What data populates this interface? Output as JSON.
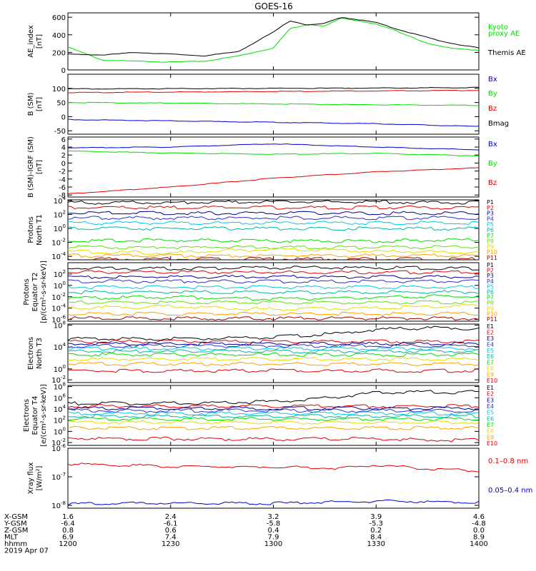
{
  "title": "GOES-16",
  "colors": {
    "black": "#000000",
    "red": "#e00000",
    "green": "#00e000",
    "blue": "#0000cc",
    "navy": "#000090",
    "purple": "#3030c8",
    "cyan": "#00c8e6",
    "teal": "#00b8a0",
    "lime": "#60e010",
    "yellow": "#e0e000",
    "orange": "#ffa000",
    "darkred": "#a00000"
  },
  "chart_data": [
    {
      "type": "line",
      "id": "ae",
      "ylabel": "AE_index\n[nT]",
      "yscale": "linear",
      "ylim": [
        0,
        650
      ],
      "yticks": [
        0,
        200,
        400,
        600
      ],
      "yticklabels": [
        "0",
        "200",
        "400",
        "600"
      ],
      "x_hours": [
        12.0,
        12.17,
        12.33,
        12.5,
        12.67,
        12.83,
        13.0,
        13.08,
        13.17,
        13.25,
        13.33,
        13.42,
        13.5,
        13.58,
        13.67,
        13.75,
        13.83,
        13.92,
        14.0
      ],
      "series": [
        {
          "name": "Kyoto\nproxy AE",
          "color": "green",
          "values": [
            260,
            110,
            100,
            90,
            100,
            160,
            250,
            470,
            520,
            500,
            590,
            560,
            520,
            460,
            380,
            300,
            260,
            240,
            220
          ]
        },
        {
          "name": "Themis AE",
          "color": "black",
          "values": [
            180,
            170,
            200,
            180,
            160,
            210,
            430,
            560,
            510,
            530,
            600,
            570,
            540,
            480,
            420,
            370,
            320,
            280,
            250
          ]
        }
      ]
    },
    {
      "type": "line",
      "id": "b_sm",
      "ylabel": "B (SM)\n[nT]",
      "yscale": "linear",
      "ylim": [
        -62,
        150
      ],
      "yticks": [
        -50,
        0,
        50,
        100
      ],
      "yticklabels": [
        "-50",
        "0",
        "50",
        "100"
      ],
      "x_hours": [
        12.0,
        12.5,
        13.0,
        13.5,
        14.0
      ],
      "series": [
        {
          "name": "Bx",
          "color": "blue",
          "values": [
            -10,
            -15,
            -20,
            -25,
            -35
          ]
        },
        {
          "name": "By",
          "color": "green",
          "values": [
            50,
            48,
            45,
            42,
            40
          ]
        },
        {
          "name": "Bz",
          "color": "red",
          "values": [
            85,
            87,
            89,
            91,
            93
          ]
        },
        {
          "name": "Bmag",
          "color": "black",
          "values": [
            98,
            99,
            100,
            101,
            103
          ]
        }
      ]
    },
    {
      "type": "line",
      "id": "b_dev",
      "ylabel": "B (SM)-IGRF (SM)\n[nT]",
      "yscale": "linear",
      "ylim": [
        -8.5,
        6.5
      ],
      "yticks": [
        -8,
        -6,
        -4,
        -2,
        0,
        2,
        4,
        6
      ],
      "yticklabels": [
        "-8",
        "-6",
        "-4",
        "-2",
        "0",
        "2",
        "4",
        "6"
      ],
      "x_hours": [
        12.0,
        12.5,
        13.0,
        13.5,
        14.0
      ],
      "series": [
        {
          "name": "Bx",
          "color": "blue",
          "values": [
            3.8,
            4.0,
            4.8,
            4.0,
            3.3
          ]
        },
        {
          "name": "By",
          "color": "green",
          "values": [
            3.0,
            2.5,
            2.2,
            2.4,
            1.8
          ]
        },
        {
          "name": "Bz",
          "color": "red",
          "values": [
            -7.7,
            -6.0,
            -3.8,
            -2.2,
            -1.2
          ]
        }
      ]
    },
    {
      "type": "line",
      "id": "protons_t1",
      "ylabel": "Protons\nNorth T1",
      "yscale": "log",
      "ylim_exp": [
        -4.5,
        4.1
      ],
      "yticks": [
        -4,
        -2,
        0,
        2,
        4
      ],
      "yticklabels": [
        "10^-4",
        "10^-2",
        "10^0",
        "10^2",
        "10^4"
      ],
      "x_hours": [
        12.0,
        12.5,
        13.0,
        13.5,
        14.0
      ],
      "series": [
        {
          "name": "P1",
          "color": "black",
          "values": [
            3.7,
            3.7,
            3.8,
            3.8,
            3.7
          ]
        },
        {
          "name": "P2",
          "color": "red",
          "values": [
            3.0,
            3.0,
            3.0,
            3.0,
            3.0
          ]
        },
        {
          "name": "P3",
          "color": "navy",
          "values": [
            2.2,
            2.2,
            2.2,
            2.2,
            2.2
          ]
        },
        {
          "name": "P4",
          "color": "purple",
          "values": [
            1.5,
            1.5,
            1.5,
            1.5,
            1.5
          ]
        },
        {
          "name": "P5",
          "color": "cyan",
          "values": [
            0.8,
            0.8,
            0.8,
            0.8,
            0.8
          ]
        },
        {
          "name": "P6",
          "color": "teal",
          "values": [
            0.0,
            0.0,
            0.0,
            0.0,
            0.0
          ]
        },
        {
          "name": "P7",
          "color": "green",
          "values": [
            -1.8,
            -1.7,
            -1.8,
            -1.8,
            -1.6
          ]
        },
        {
          "name": "P8",
          "color": "lime",
          "values": [
            -2.7,
            -2.7,
            -2.7,
            -2.7,
            -2.7
          ]
        },
        {
          "name": "P9",
          "color": "yellow",
          "values": [
            -3.3,
            -3.5,
            -3.0,
            -3.3,
            -3.4
          ]
        },
        {
          "name": "P10",
          "color": "orange",
          "values": [
            -3.9,
            -3.9,
            -3.9,
            -3.9,
            -3.9
          ]
        },
        {
          "name": "P11",
          "color": "darkred",
          "values": [
            -4.4,
            -4.4,
            -4.4,
            -4.4,
            -4.4
          ]
        }
      ]
    },
    {
      "type": "line",
      "id": "protons_t2",
      "ylabel": "Protons\nEquator T2\n[p/(cm²-s-sr-keV)]",
      "yscale": "log",
      "ylim_exp": [
        -6.3,
        4.0
      ],
      "yticks": [
        -6,
        -4,
        -2,
        0,
        2
      ],
      "yticklabels": [
        "10^-6",
        "10^-4",
        "10^-2",
        "10^0",
        "10^2"
      ],
      "x_hours": [
        12.0,
        12.5,
        13.0,
        13.5,
        14.0
      ],
      "series": [
        {
          "name": "P1",
          "color": "black",
          "values": [
            3.0,
            3.0,
            3.1,
            3.1,
            3.0
          ]
        },
        {
          "name": "P2",
          "color": "red",
          "values": [
            2.3,
            2.3,
            2.3,
            2.3,
            2.3
          ]
        },
        {
          "name": "P3",
          "color": "navy",
          "values": [
            1.5,
            1.5,
            1.5,
            1.5,
            1.5
          ]
        },
        {
          "name": "P4",
          "color": "purple",
          "values": [
            0.7,
            0.7,
            0.7,
            0.7,
            0.7
          ]
        },
        {
          "name": "P5",
          "color": "cyan",
          "values": [
            -0.3,
            -0.3,
            -0.3,
            -0.3,
            -0.3
          ]
        },
        {
          "name": "P6",
          "color": "teal",
          "values": [
            -1.2,
            -1.2,
            -1.2,
            -1.2,
            -1.2
          ]
        },
        {
          "name": "P7",
          "color": "green",
          "values": [
            -2.3,
            -2.0,
            -2.4,
            -2.1,
            -1.8
          ]
        },
        {
          "name": "P8",
          "color": "lime",
          "values": [
            -3.0,
            -3.0,
            -3.0,
            -3.0,
            -3.0
          ]
        },
        {
          "name": "P9",
          "color": "yellow",
          "values": [
            -4.0,
            -3.7,
            -4.2,
            -4.0,
            -3.5
          ]
        },
        {
          "name": "P10",
          "color": "orange",
          "values": [
            -5.0,
            -5.0,
            -5.0,
            -5.0,
            -5.0
          ]
        },
        {
          "name": "P11",
          "color": "darkred",
          "values": [
            -5.8,
            -5.8,
            -5.8,
            -5.8,
            -5.8
          ]
        }
      ]
    },
    {
      "type": "line",
      "id": "electrons_t3",
      "ylabel": "Electrons\nNorth T3",
      "yscale": "log",
      "ylim_exp": [
        -2.5,
        8.2
      ],
      "yticks": [
        -2,
        0,
        4,
        8
      ],
      "yticklabels": [
        "10^-2",
        "10^0",
        "10^4",
        "10^8"
      ],
      "x_hours": [
        12.0,
        12.5,
        13.0,
        13.33,
        13.5,
        13.75,
        14.0
      ],
      "series": [
        {
          "name": "E1",
          "color": "black",
          "values": [
            5.5,
            5.5,
            5.8,
            6.5,
            7.2,
            7.5,
            7.4
          ]
        },
        {
          "name": "E2",
          "color": "red",
          "values": [
            5.0,
            5.0,
            5.0,
            5.0,
            5.0,
            5.0,
            5.0
          ]
        },
        {
          "name": "E3",
          "color": "navy",
          "values": [
            4.6,
            4.6,
            4.6,
            4.6,
            4.6,
            4.6,
            4.6
          ]
        },
        {
          "name": "E4",
          "color": "purple",
          "values": [
            4.2,
            4.2,
            4.2,
            4.2,
            4.2,
            4.2,
            4.2
          ]
        },
        {
          "name": "E5",
          "color": "cyan",
          "values": [
            3.7,
            3.7,
            3.7,
            3.7,
            3.7,
            3.7,
            3.7
          ]
        },
        {
          "name": "E6",
          "color": "teal",
          "values": [
            3.2,
            3.2,
            3.2,
            3.2,
            3.2,
            3.2,
            3.2
          ]
        },
        {
          "name": "E7",
          "color": "green",
          "values": [
            2.6,
            2.6,
            2.6,
            2.6,
            2.6,
            2.6,
            2.6
          ]
        },
        {
          "name": "E8",
          "color": "yellow",
          "values": [
            1.8,
            1.8,
            1.8,
            1.8,
            1.8,
            1.8,
            1.8
          ]
        },
        {
          "name": "E9",
          "color": "orange",
          "values": [
            0.9,
            0.9,
            0.9,
            0.9,
            0.9,
            0.9,
            0.9
          ]
        },
        {
          "name": "E10",
          "color": "red",
          "values": [
            -0.3,
            -0.4,
            -0.3,
            -0.4,
            -0.3,
            -0.4,
            -0.3
          ]
        }
      ]
    },
    {
      "type": "line",
      "id": "electrons_t4",
      "ylabel": "Electrons\nEquator T4\n[e/(cm²-s-sr-keV)]",
      "yscale": "log",
      "ylim_exp": [
        -2.5,
        8.2
      ],
      "yticks": [
        -2,
        0,
        2,
        4,
        6,
        8
      ],
      "yticklabels": [
        "10^-2",
        "10^0",
        "10^2",
        "10^4",
        "10^6",
        "10^8"
      ],
      "x_hours": [
        12.0,
        12.5,
        13.0,
        13.33,
        13.5,
        13.75,
        14.0
      ],
      "series": [
        {
          "name": "E1",
          "color": "black",
          "values": [
            5.0,
            5.0,
            5.3,
            6.2,
            6.9,
            7.0,
            7.0
          ]
        },
        {
          "name": "E2",
          "color": "red",
          "values": [
            4.5,
            4.5,
            4.5,
            4.5,
            4.5,
            4.5,
            4.5
          ]
        },
        {
          "name": "E3",
          "color": "navy",
          "values": [
            4.1,
            4.1,
            4.1,
            4.1,
            4.1,
            4.1,
            4.1
          ]
        },
        {
          "name": "E4",
          "color": "purple",
          "values": [
            3.7,
            3.7,
            3.7,
            3.7,
            3.7,
            3.7,
            3.7
          ]
        },
        {
          "name": "E5",
          "color": "cyan",
          "values": [
            3.2,
            3.2,
            3.2,
            3.2,
            3.2,
            3.2,
            3.2
          ]
        },
        {
          "name": "E6",
          "color": "teal",
          "values": [
            2.7,
            2.7,
            2.7,
            2.7,
            2.7,
            2.7,
            2.7
          ]
        },
        {
          "name": "E7",
          "color": "green",
          "values": [
            2.2,
            2.2,
            2.2,
            2.2,
            2.2,
            2.2,
            2.2
          ]
        },
        {
          "name": "E8",
          "color": "yellow",
          "values": [
            1.6,
            1.6,
            1.6,
            1.6,
            1.6,
            1.6,
            1.6
          ]
        },
        {
          "name": "E9",
          "color": "orange",
          "values": [
            0.6,
            0.6,
            0.6,
            0.6,
            0.6,
            0.6,
            0.6
          ]
        },
        {
          "name": "E10",
          "color": "red",
          "values": [
            -1.2,
            -1.3,
            -1.4,
            -1.3,
            -1.3,
            -1.5,
            -1.6
          ]
        }
      ]
    },
    {
      "type": "line",
      "id": "xray",
      "ylabel": "Xray flux\n[W/m²]",
      "yscale": "log",
      "ylim_exp": [
        -8.1,
        -6.0
      ],
      "yticks": [
        -8,
        -7,
        -6
      ],
      "yticklabels": [
        "10^-8",
        "10^-7",
        "10^-6"
      ],
      "x_hours": [
        12.0,
        12.5,
        13.0,
        13.33,
        13.5,
        13.75,
        14.0
      ],
      "series": [
        {
          "name": "0.1–0.8 nm",
          "color": "red",
          "values": [
            -6.55,
            -6.63,
            -6.66,
            -6.7,
            -6.58,
            -6.73,
            -6.78
          ]
        },
        {
          "name": "0.05–0.4 nm",
          "color": "blue",
          "values": [
            -7.95,
            -7.92,
            -7.93,
            -7.88,
            -7.85,
            -7.87,
            -7.88
          ]
        }
      ]
    }
  ],
  "xaxis": {
    "row_labels": [
      "X-GSM",
      "Y-GSM",
      "Z-GSM",
      "MLT",
      "hhmm"
    ],
    "date": "2019 Apr 07",
    "columns": [
      {
        "time_hours": 12.0,
        "values": [
          "1.6",
          "-6.4",
          "0.8",
          "6.9",
          "1200"
        ]
      },
      {
        "time_hours": 12.5,
        "values": [
          "2.4",
          "-6.1",
          "0.6",
          "7.4",
          "1230"
        ]
      },
      {
        "time_hours": 13.0,
        "values": [
          "3.2",
          "-5.8",
          "0.4",
          "7.9",
          "1300"
        ]
      },
      {
        "time_hours": 13.5,
        "values": [
          "3.9",
          "-5.3",
          "0.2",
          "8.4",
          "1330"
        ]
      },
      {
        "time_hours": 14.0,
        "values": [
          "4.6",
          "-4.8",
          "0.0",
          "8.9",
          "1400"
        ]
      }
    ]
  }
}
